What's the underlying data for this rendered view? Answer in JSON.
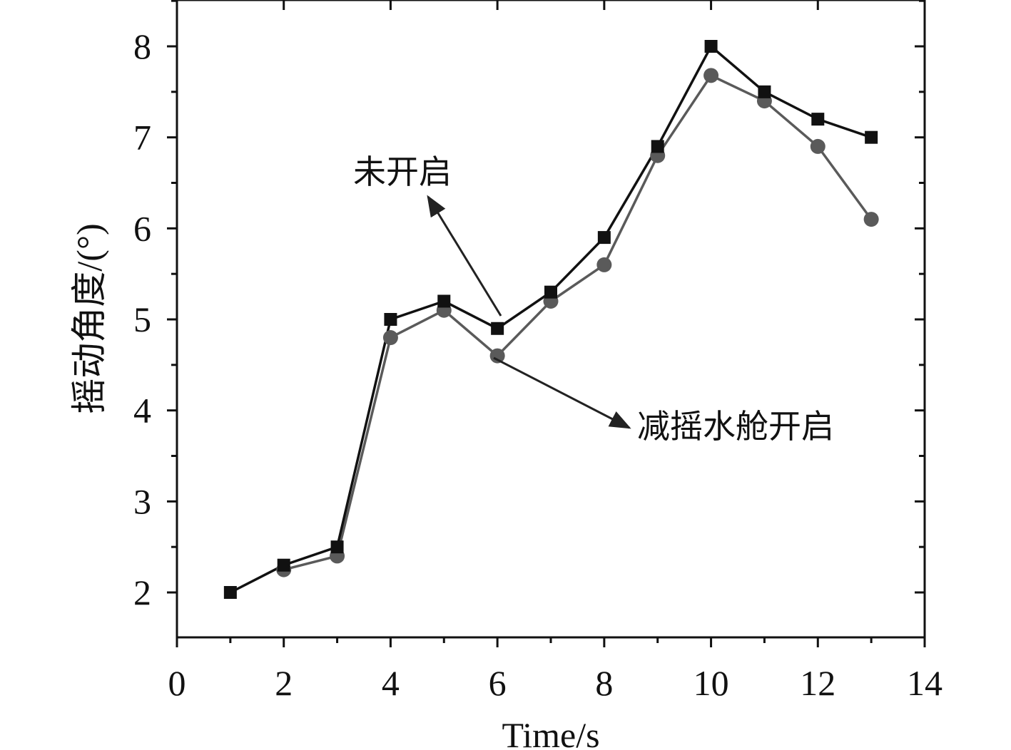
{
  "chart_data": {
    "type": "line",
    "title": "",
    "xlabel": "Time/s",
    "ylabel": "摇动角度/(°)",
    "xlim": [
      0,
      14
    ],
    "ylim": [
      1.5,
      8.5
    ],
    "x_ticks": [
      0,
      2,
      4,
      6,
      8,
      10,
      12,
      14
    ],
    "y_ticks": [
      2,
      3,
      4,
      5,
      6,
      7,
      8
    ],
    "grid": false,
    "x": [
      1,
      2,
      3,
      4,
      5,
      6,
      7,
      8,
      9,
      10,
      11,
      12,
      13
    ],
    "series": [
      {
        "name": "未开启",
        "marker": "square",
        "color": "#111111",
        "values": [
          2.0,
          2.3,
          2.5,
          5.0,
          5.2,
          4.9,
          5.3,
          5.9,
          6.9,
          8.0,
          7.5,
          7.2,
          7.0
        ]
      },
      {
        "name": "减摇水舱开启",
        "marker": "circle",
        "color": "#5a5a5a",
        "values": [
          null,
          2.25,
          2.4,
          4.8,
          5.1,
          4.6,
          5.2,
          5.6,
          6.8,
          7.68,
          7.4,
          6.9,
          6.1
        ]
      }
    ],
    "annotations": [
      {
        "text": "未开启",
        "points_to": {
          "x": 6,
          "y": 4.9
        }
      },
      {
        "text": "减摇水舱开启",
        "points_to": {
          "x": 6,
          "y": 4.6
        }
      }
    ]
  }
}
